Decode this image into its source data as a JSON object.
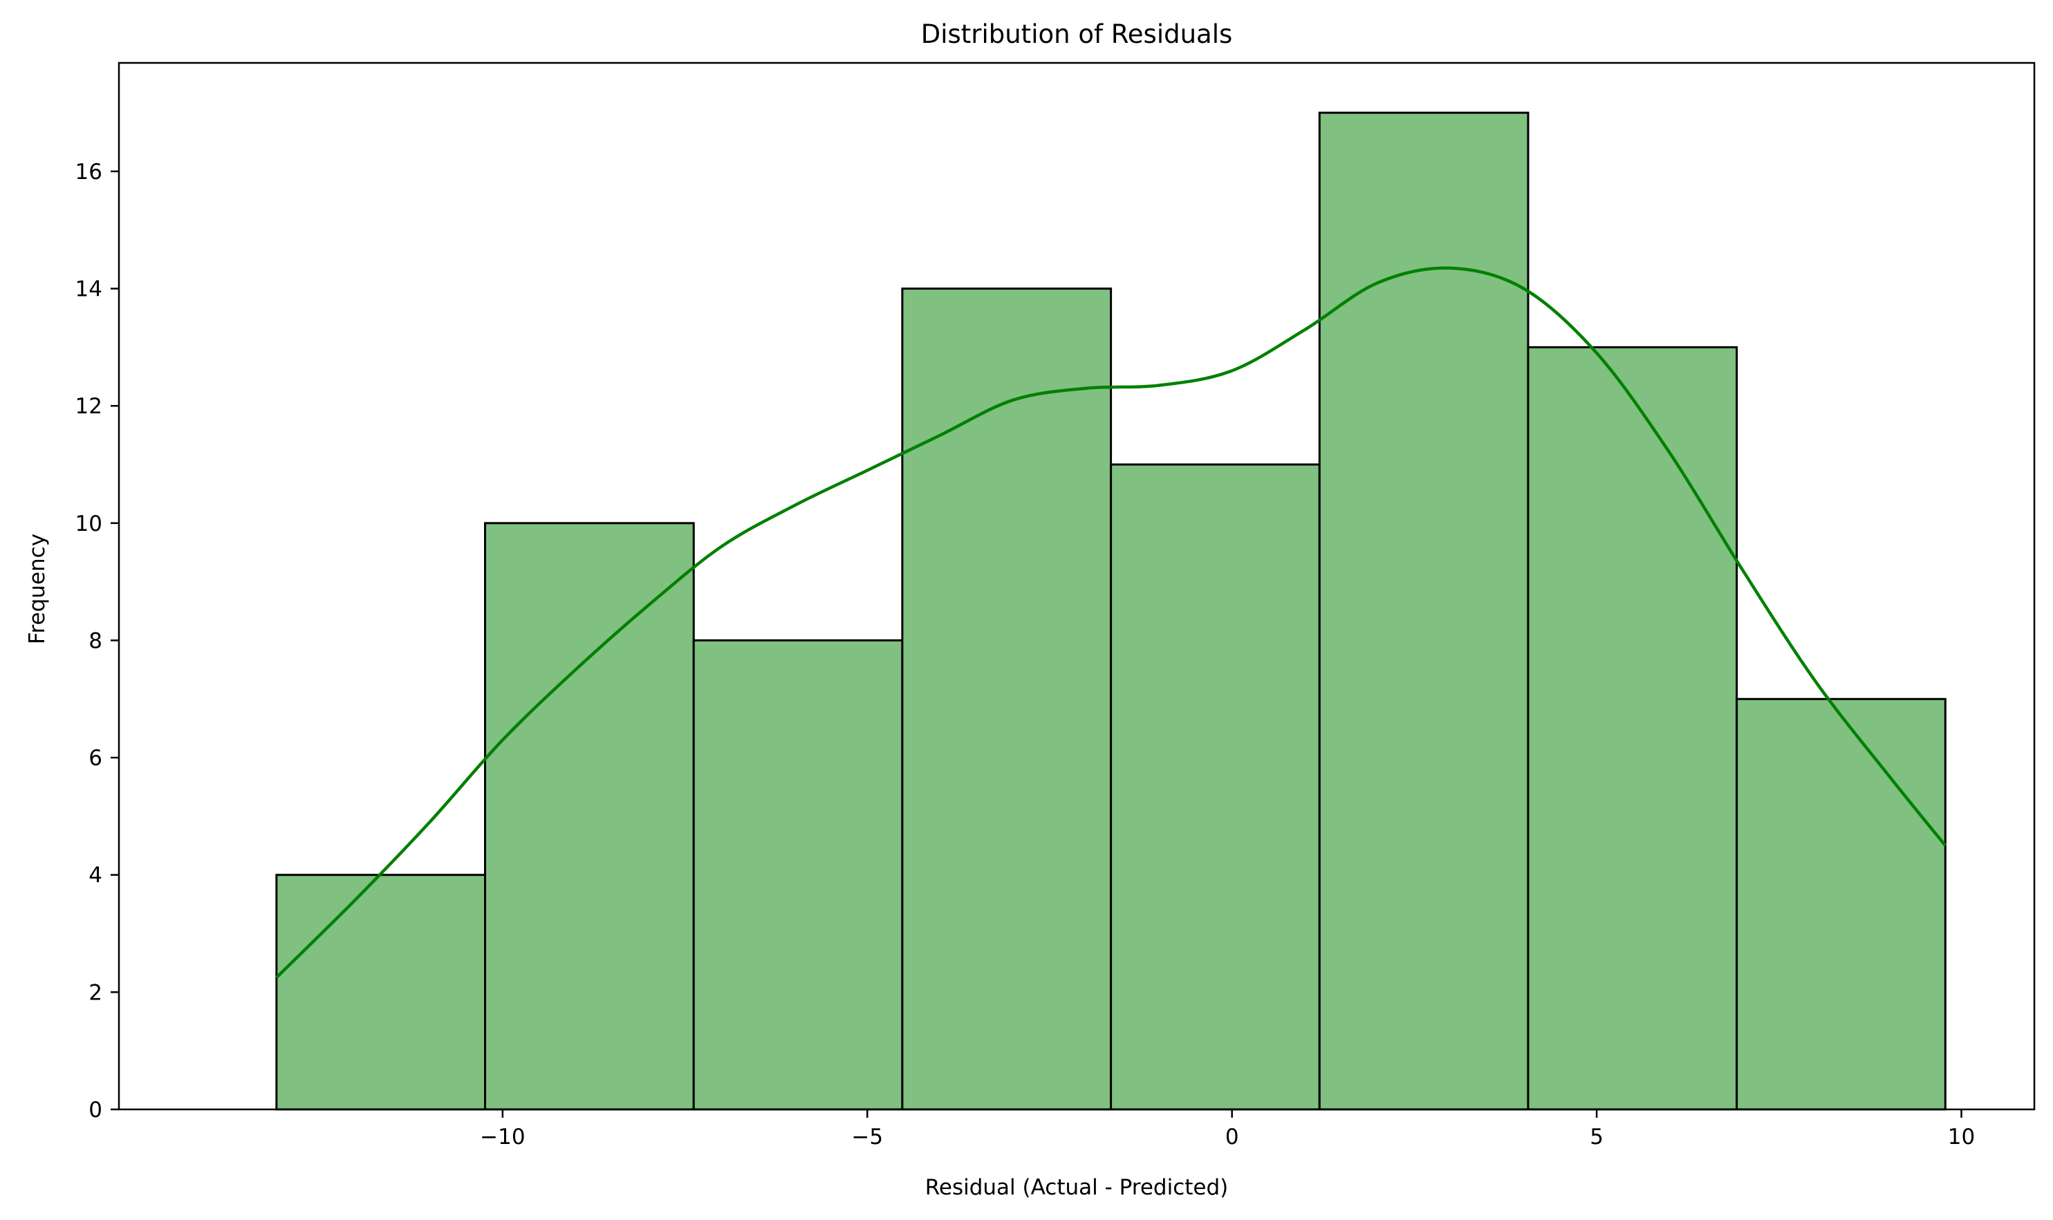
{
  "chart_data": {
    "type": "bar",
    "subtype": "histogram",
    "title": "Distribution of Residuals",
    "xlabel": "Residual (Actual - Predicted)",
    "ylabel": "Frequency",
    "xlim": [
      -15.26,
      11.0
    ],
    "ylim": [
      0,
      17.85
    ],
    "xticks": [
      -10,
      -5,
      0,
      5,
      10
    ],
    "xtick_labels": [
      "−10",
      "−5",
      "0",
      "5",
      "10"
    ],
    "yticks": [
      0,
      2,
      4,
      6,
      8,
      10,
      12,
      14,
      16
    ],
    "ytick_labels": [
      "0",
      "2",
      "4",
      "6",
      "8",
      "10",
      "12",
      "14",
      "16"
    ],
    "bins": [
      {
        "left": -13.1,
        "right": -10.24,
        "count": 4
      },
      {
        "left": -10.24,
        "right": -7.38,
        "count": 10
      },
      {
        "left": -7.38,
        "right": -4.52,
        "count": 8
      },
      {
        "left": -4.52,
        "right": -1.66,
        "count": 14
      },
      {
        "left": -1.66,
        "right": 1.2,
        "count": 11
      },
      {
        "left": 1.2,
        "right": 4.06,
        "count": 17
      },
      {
        "left": 4.06,
        "right": 6.92,
        "count": 13
      },
      {
        "left": 6.92,
        "right": 9.78,
        "count": 7
      }
    ],
    "kde": {
      "x": [
        -13.1,
        -12.0,
        -11.0,
        -10.0,
        -9.0,
        -8.0,
        -7.0,
        -6.0,
        -5.0,
        -4.0,
        -3.0,
        -2.0,
        -1.0,
        0.0,
        1.0,
        2.0,
        3.0,
        4.0,
        5.0,
        6.0,
        7.0,
        8.0,
        9.0,
        9.78
      ],
      "y": [
        2.25,
        3.6,
        4.9,
        6.3,
        7.5,
        8.6,
        9.6,
        10.3,
        10.9,
        11.5,
        12.1,
        12.3,
        12.35,
        12.6,
        13.3,
        14.1,
        14.35,
        14.0,
        12.9,
        11.2,
        9.2,
        7.3,
        5.7,
        4.5
      ]
    },
    "bar_fill": "#80c080",
    "bar_edge": "#000000",
    "kde_color": "#008000",
    "grid": false,
    "legend": "none"
  }
}
